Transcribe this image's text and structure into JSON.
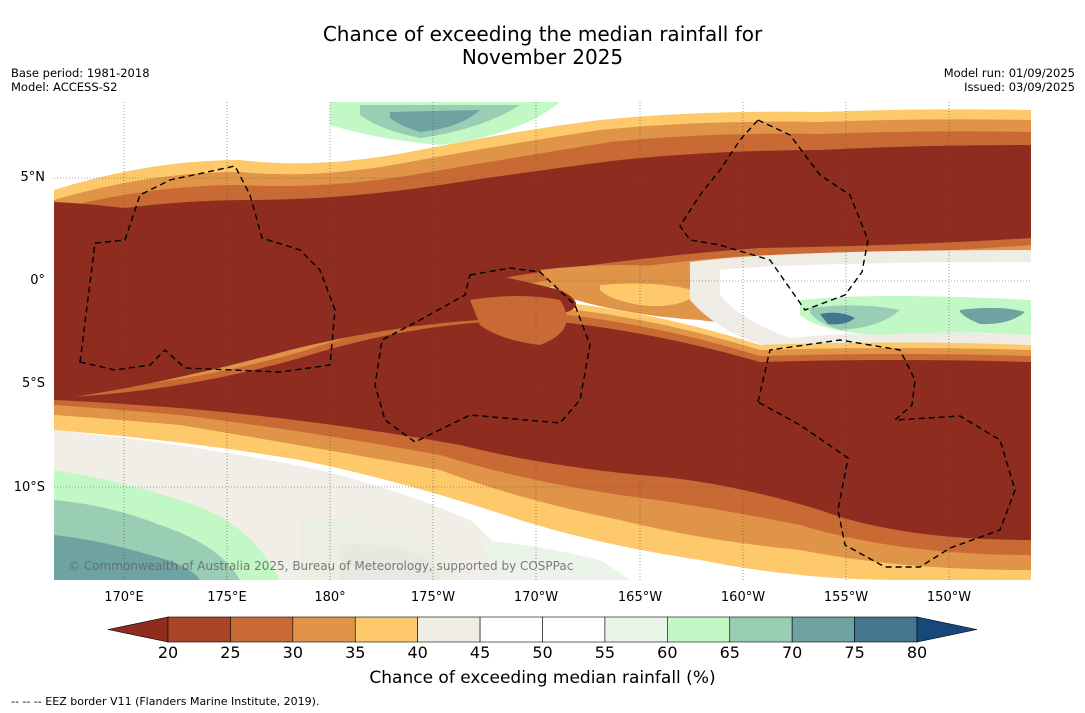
{
  "title_line1": "Chance of exceeding the median rainfall for",
  "title_line2": "November 2025",
  "base_period": "Base period: 1981-2018",
  "model": "Model: ACCESS-S2",
  "model_run": "Model run: 01/09/2025",
  "issued": "Issued: 03/09/2025",
  "lat_labels": [
    "5°N",
    "0°",
    "5°S",
    "10°S"
  ],
  "lon_labels": [
    "170°E",
    "175°E",
    "180°",
    "175°W",
    "170°W",
    "165°W",
    "160°W",
    "155°W",
    "150°W"
  ],
  "colorbar": {
    "ticks": [
      "20",
      "25",
      "30",
      "35",
      "40",
      "45",
      "50",
      "55",
      "60",
      "65",
      "70",
      "75",
      "80"
    ],
    "colors": [
      "#8e2d1f",
      "#ab4528",
      "#c96a35",
      "#df9447",
      "#fdc96b",
      "#efece6",
      "#ffffff",
      "#ffffff",
      "#eaf4e8",
      "#c2f8c6",
      "#99cdb4",
      "#6ea3a2",
      "#44768f",
      "#164979"
    ],
    "label": "Chance of exceeding median rainfall (%)"
  },
  "copyright": "© Commonwealth of Australia 2025, Bureau of Meteorology, supported by COSPPac",
  "footnote": "-- -- -- EEZ border V11 (Flanders Marine Institute, 2019)."
}
